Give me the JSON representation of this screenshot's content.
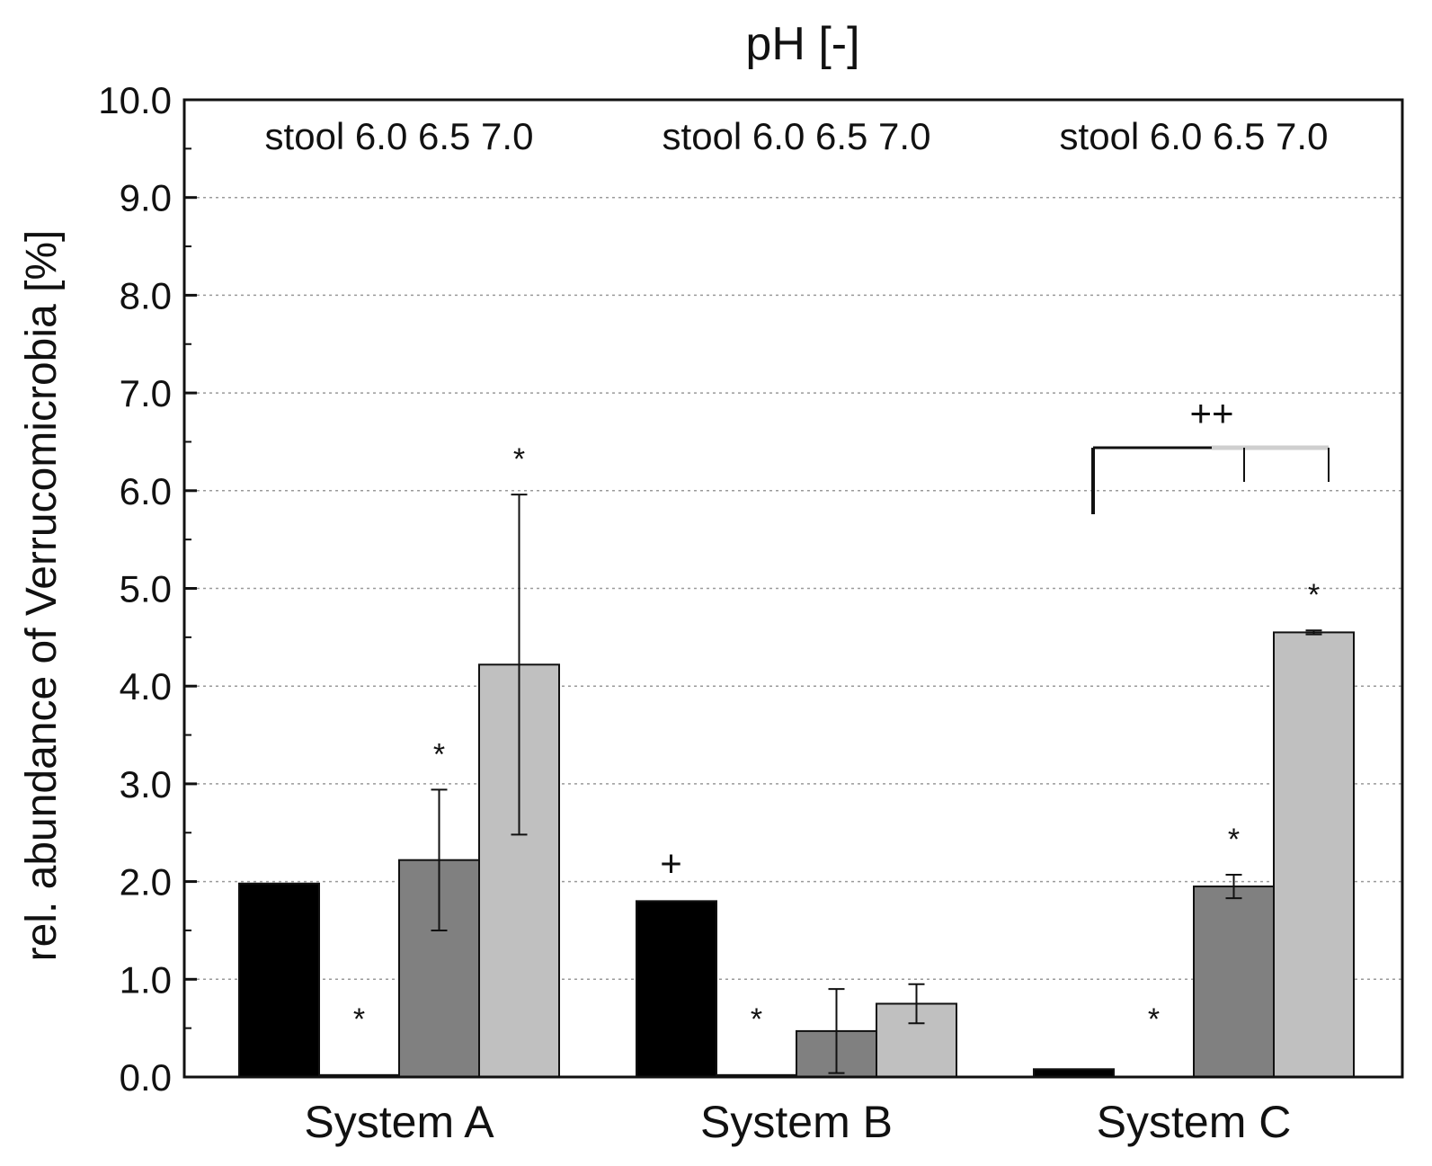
{
  "chart_data": {
    "type": "bar",
    "title": "pH [-]",
    "xlabel": "",
    "ylabel": "rel. abundance of Verrucomicrobia [%]",
    "ylim": [
      0,
      10
    ],
    "yticks": [
      "0.0",
      "1.0",
      "2.0",
      "3.0",
      "4.0",
      "5.0",
      "6.0",
      "7.0",
      "8.0",
      "9.0",
      "10.0"
    ],
    "grid": "horizontal dotted",
    "categories": [
      "System A",
      "System B",
      "System C"
    ],
    "group_header": "stool 6.0 6.5 7.0",
    "series": [
      {
        "name": "stool",
        "color": "#000000",
        "values": [
          1.98,
          1.8,
          0.08
        ],
        "errors": [
          0,
          0,
          0
        ],
        "markers": [
          "",
          "+",
          ""
        ]
      },
      {
        "name": "6.0",
        "color": "#000000",
        "values": [
          0.02,
          0.02,
          0.0
        ],
        "errors": [
          0,
          0,
          0
        ],
        "markers": [
          "*",
          "*",
          "*"
        ]
      },
      {
        "name": "6.5",
        "color": "#808080",
        "values": [
          2.22,
          0.47,
          1.95
        ],
        "errors": [
          0.72,
          0.43,
          0.12
        ],
        "markers": [
          "*",
          "",
          "*"
        ]
      },
      {
        "name": "7.0",
        "color": "#c0c0c0",
        "values": [
          4.22,
          0.75,
          4.55
        ],
        "errors": [
          1.74,
          0.2,
          0.02
        ],
        "markers": [
          "*",
          "",
          "*"
        ]
      }
    ],
    "bracket": {
      "label": "++",
      "group": "System C"
    }
  }
}
